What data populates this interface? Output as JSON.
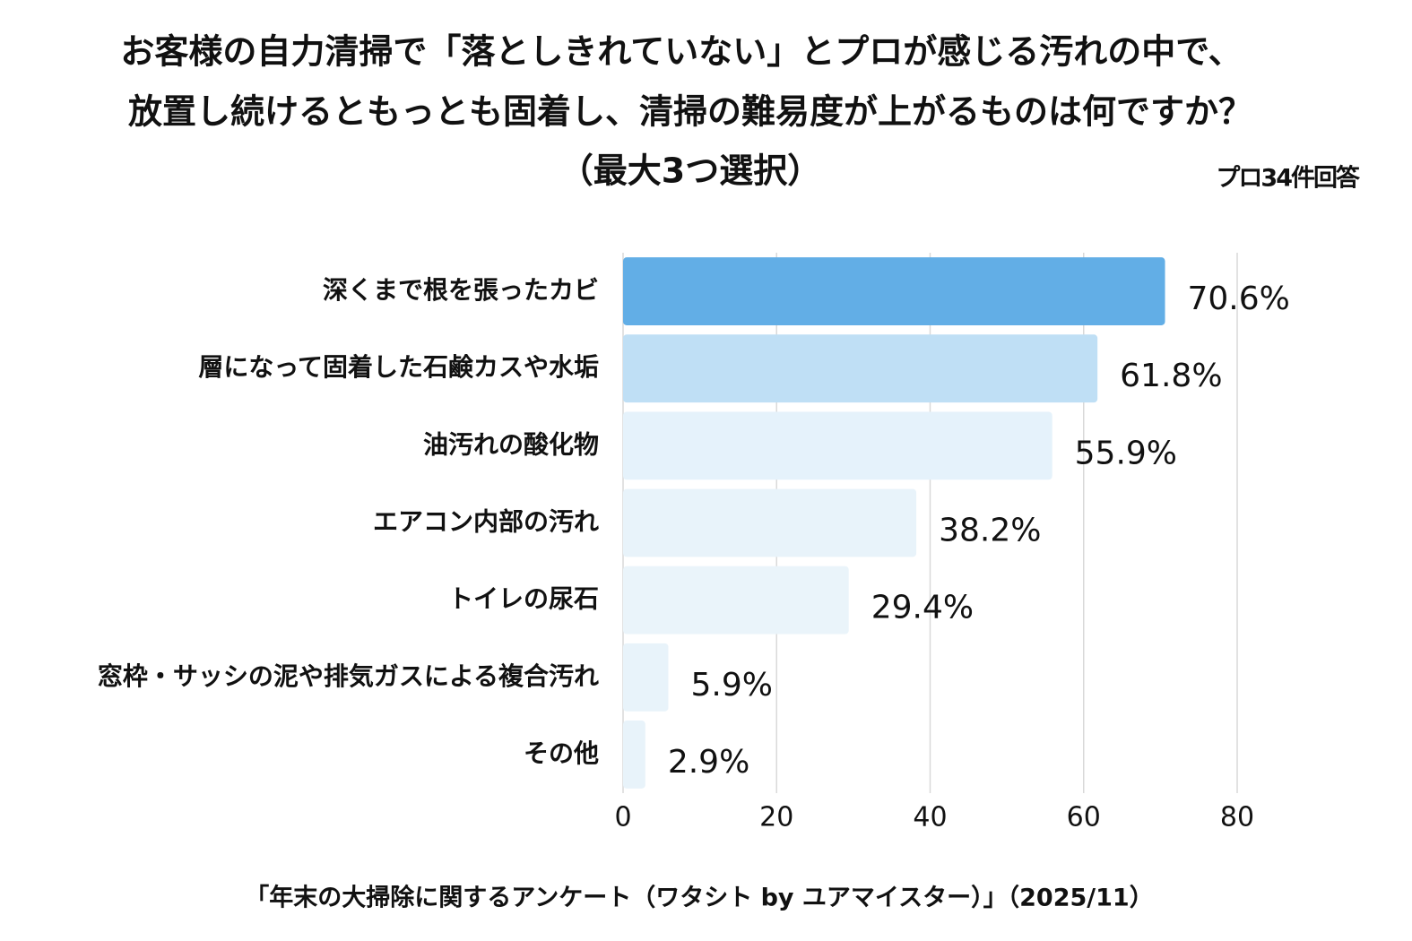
{
  "chart_data": {
    "type": "hbar",
    "title": [
      "お客様の自力清掃で「落としきれていない」とプロが感じる汚れの中で、",
      "放置し続けるともっとも固着し、清掃の難易度が上がるものは何ですか？",
      "（最大3つ選択）"
    ],
    "note": "プロ34件回答",
    "source": "「年末の大掃除に関するアンケート（ワタシト by ユアマイスター）」（2025/11）",
    "categories": [
      "深くまで根を張ったカビ",
      "層になって固着した石鹸カスや水垢",
      "油汚れの酸化物",
      "エアコン内部の汚れ",
      "トイレの尿石",
      "窓枠・サッシの泥や排気ガスによる複合汚れ",
      "その他"
    ],
    "values": [
      70.6,
      61.8,
      55.9,
      38.2,
      29.4,
      5.9,
      2.9
    ],
    "value_labels": [
      "70.6%",
      "61.8%",
      "55.9%",
      "38.2%",
      "29.4%",
      "5.9%",
      "2.9%"
    ],
    "colors": [
      "#62aee6",
      "#bfdff5",
      "#e5f2fb",
      "#e8f3fa",
      "#eaf4fa",
      "#e8f3fa",
      "#e8f3fa"
    ],
    "xlim": [
      0,
      80
    ],
    "xticks": [
      0,
      20,
      40,
      60,
      80
    ],
    "grid": true
  }
}
